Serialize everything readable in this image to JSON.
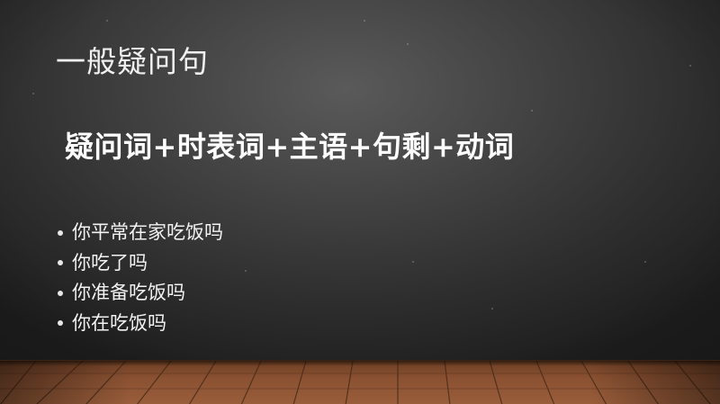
{
  "slide": {
    "title": "一般疑问句",
    "formula": "疑问词+时表词+主语+句剩+动词",
    "bullets": [
      "你平常在家吃饭吗",
      "你吃了吗",
      "你准备吃饭吗",
      "你在吃饭吗"
    ]
  },
  "colors": {
    "background": "#3a3a3a",
    "text": "#f2f2f2",
    "floor": "#8a5132"
  }
}
